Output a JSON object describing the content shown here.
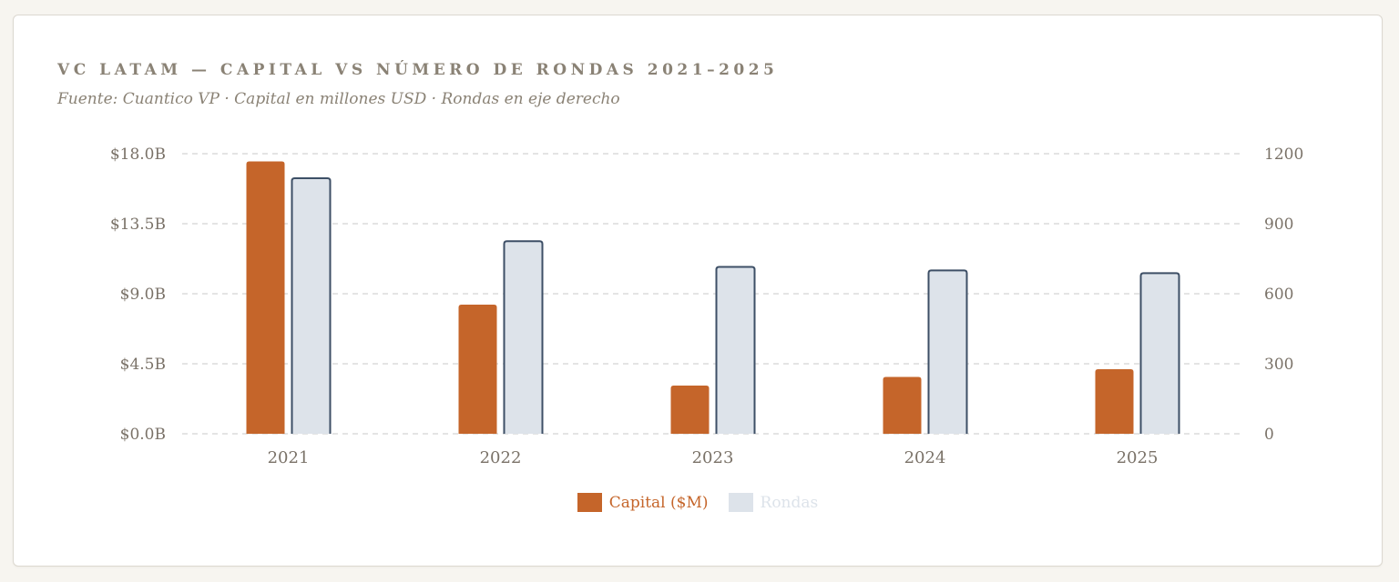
{
  "colors": {
    "capital": "#c5652a",
    "rondas_fill": "#dde3ea",
    "rondas_stroke": "#3d4f66",
    "grid": "#dcdcdc",
    "legend_rondas_text": "#dde3ea"
  },
  "chart_data": {
    "type": "bar",
    "title": "VC LATAM — CAPITAL VS NÚMERO DE RONDAS 2021–2025",
    "subtitle": "Fuente: Cuantico VP · Capital en millones USD · Rondas en eje derecho",
    "categories": [
      "2021",
      "2022",
      "2023",
      "2024",
      "2025"
    ],
    "series": [
      {
        "name": "Capital ($M)",
        "axis": "left",
        "values": [
          17500,
          8300,
          3100,
          3650,
          4150
        ]
      },
      {
        "name": "Rondas",
        "axis": "right",
        "values": [
          1095,
          825,
          715,
          700,
          688
        ]
      }
    ],
    "y_left": {
      "ylim": [
        0,
        18000
      ],
      "ticks": [
        "$0.0B",
        "$4.5B",
        "$9.0B",
        "$13.5B",
        "$18.0B"
      ]
    },
    "y_right": {
      "ylim": [
        0,
        1200
      ],
      "ticks": [
        "0",
        "300",
        "600",
        "900",
        "1200"
      ]
    },
    "grid": true,
    "legend": "bottom-center"
  }
}
